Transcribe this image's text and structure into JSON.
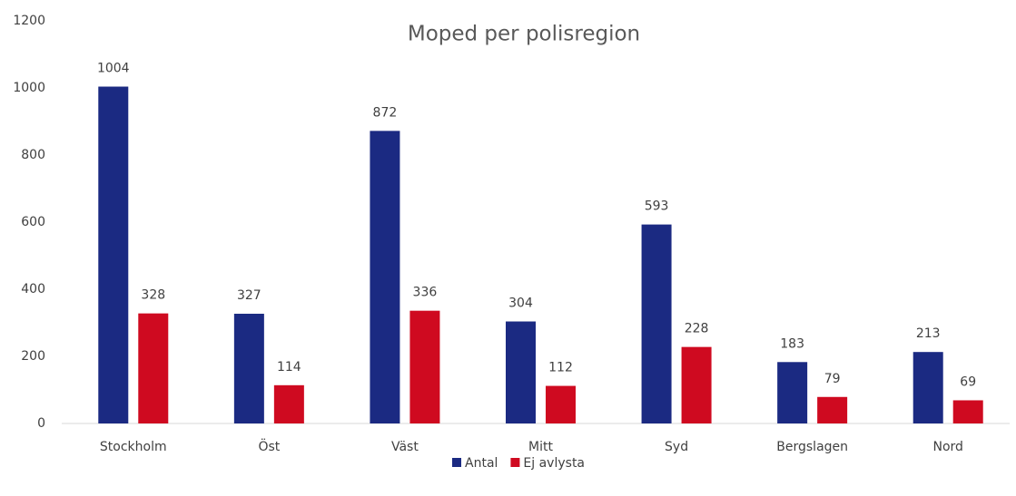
{
  "chart_data": {
    "type": "bar",
    "title": "Moped per polisregion",
    "categories": [
      "Stockholm",
      "Öst",
      "Väst",
      "Mitt",
      "Syd",
      "Bergslagen",
      "Nord"
    ],
    "series": [
      {
        "name": "Antal",
        "color": "#1b2a82",
        "values": [
          1004,
          327,
          872,
          304,
          593,
          183,
          213
        ]
      },
      {
        "name": "Ej avlysta",
        "color": "#cf0a20",
        "values": [
          328,
          114,
          336,
          112,
          228,
          79,
          69
        ]
      }
    ],
    "ylim": [
      0,
      1200
    ],
    "yticks": [
      0,
      200,
      400,
      600,
      800,
      1000,
      1200
    ],
    "grid": false,
    "data_labels": true,
    "legend": "bottom"
  }
}
